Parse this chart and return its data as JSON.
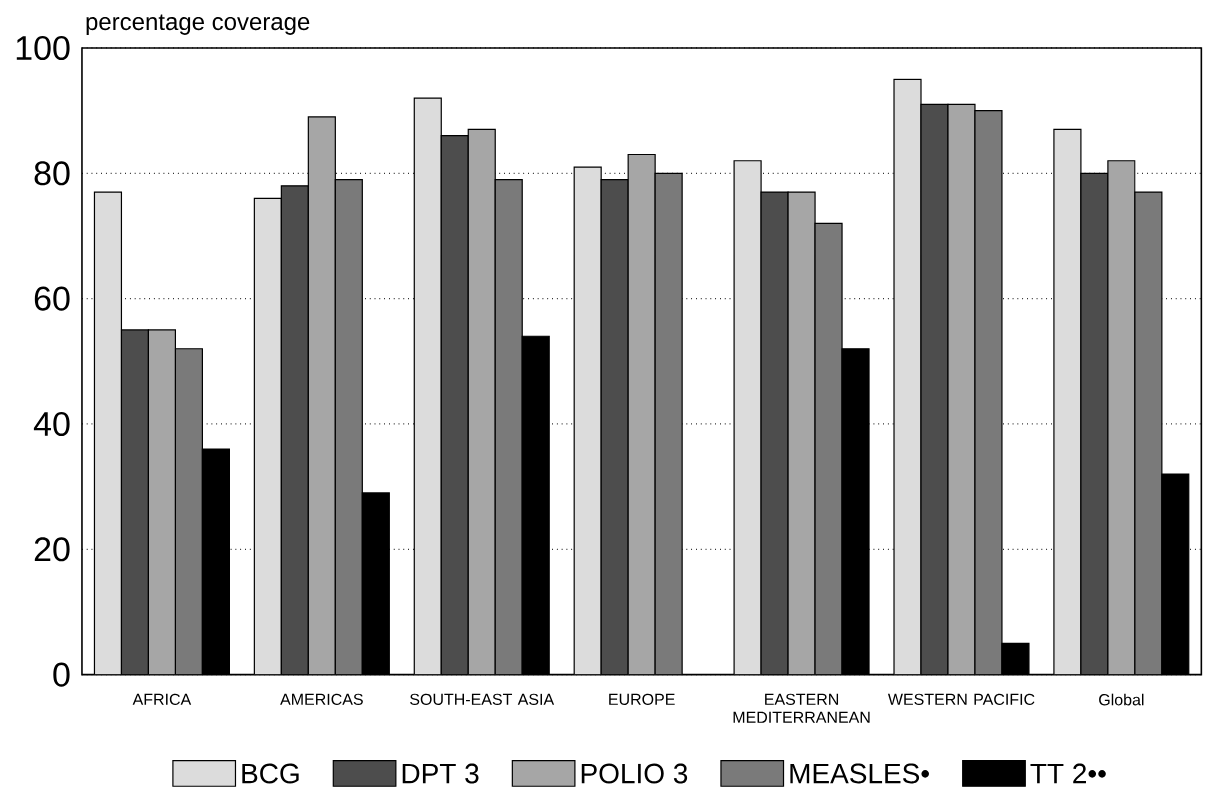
{
  "chart_data": {
    "type": "bar",
    "ylabel": "percentage coverage",
    "categories": [
      "AFRICA",
      "AMERICAS",
      "SOUTH-EAST ASIA",
      "EUROPE",
      "EASTERN MEDITERRANEAN",
      "WESTERN PACIFIC",
      "Global"
    ],
    "series": [
      {
        "name": "BCG",
        "color": "#dcdcdc",
        "values": [
          77,
          76,
          92,
          81,
          82,
          95,
          87
        ]
      },
      {
        "name": "DPT 3",
        "color": "#4d4d4d",
        "values": [
          55,
          78,
          86,
          79,
          77,
          91,
          80
        ]
      },
      {
        "name": "POLIO 3",
        "color": "#a6a6a6",
        "values": [
          55,
          89,
          87,
          83,
          77,
          91,
          82
        ]
      },
      {
        "name": "MEASLES•",
        "color": "#7a7a7a",
        "values": [
          52,
          79,
          79,
          80,
          72,
          90,
          77
        ]
      },
      {
        "name": "TT 2••",
        "color": "#000000",
        "values": [
          36,
          29,
          54,
          null,
          52,
          5,
          32
        ]
      }
    ],
    "ylim": [
      0,
      100
    ],
    "yticks": [
      0,
      20,
      40,
      60,
      80,
      100
    ],
    "grid": "y",
    "legend": "bottom"
  }
}
